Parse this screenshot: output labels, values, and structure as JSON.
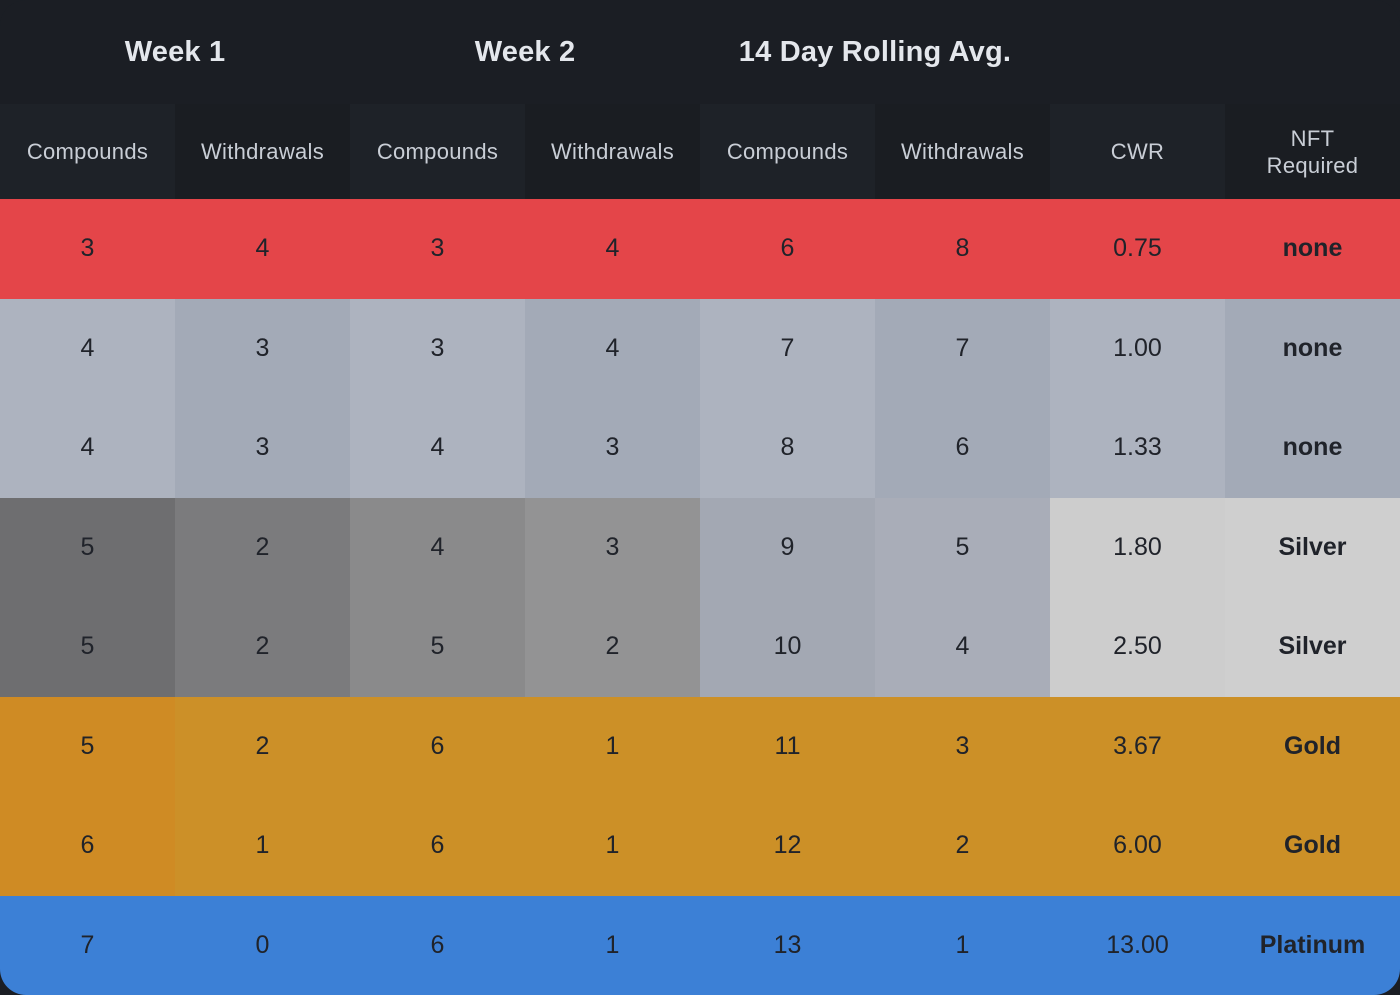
{
  "group_headers": [
    "Week 1",
    "Week 2",
    "14 Day Rolling Avg."
  ],
  "columns": [
    "Compounds",
    "Withdrawals",
    "Compounds",
    "Withdrawals",
    "Compounds",
    "Withdrawals",
    "CWR",
    "NFT\nRequired"
  ],
  "rows": [
    {
      "values": [
        "3",
        "4",
        "3",
        "4",
        "6",
        "8",
        "0.75",
        "none"
      ],
      "tier": "red"
    },
    {
      "values": [
        "4",
        "3",
        "3",
        "4",
        "7",
        "7",
        "1.00",
        "none"
      ],
      "tier": "none"
    },
    {
      "values": [
        "4",
        "3",
        "4",
        "3",
        "8",
        "6",
        "1.33",
        "none"
      ],
      "tier": "none"
    },
    {
      "values": [
        "5",
        "2",
        "4",
        "3",
        "9",
        "5",
        "1.80",
        "Silver"
      ],
      "tier": "silver"
    },
    {
      "values": [
        "5",
        "2",
        "5",
        "2",
        "10",
        "4",
        "2.50",
        "Silver"
      ],
      "tier": "silver"
    },
    {
      "values": [
        "5",
        "2",
        "6",
        "1",
        "11",
        "3",
        "3.67",
        "Gold"
      ],
      "tier": "gold"
    },
    {
      "values": [
        "6",
        "1",
        "6",
        "1",
        "12",
        "2",
        "6.00",
        "Gold"
      ],
      "tier": "gold"
    },
    {
      "values": [
        "7",
        "0",
        "6",
        "1",
        "13",
        "1",
        "13.00",
        "Platinum"
      ],
      "tier": "platinum"
    }
  ],
  "colors": {
    "header_bg": "#1b1e24",
    "red": "#e44549",
    "none": [
      "#adb3bf",
      "#a3aab7"
    ],
    "silver": [
      "#6e6e70",
      "#7b7b7d",
      "#8a8a8b",
      "#939394",
      "#a3a8b3",
      "#a9adb8",
      "#cdcdcd",
      "#cfcfcf"
    ],
    "gold": [
      "#cf8b24",
      "#cc9028",
      "#cc9027",
      "#cc9027",
      "#cc9027",
      "#cc9027",
      "#cc9027",
      "#cc9027"
    ],
    "platinum": "#3c80d6"
  }
}
